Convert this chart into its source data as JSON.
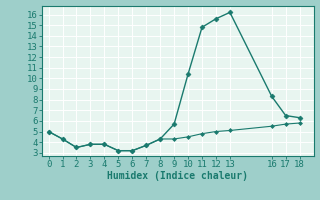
{
  "xlabel": "Humidex (Indice chaleur)",
  "background_color": "#9ecfca",
  "plot_bg_color": "#e8f5f0",
  "grid_color": "#ffffff",
  "line_color": "#1a7a6e",
  "outer_bg": "#9ecfca",
  "line1_x": [
    0,
    1,
    2,
    3,
    4,
    5,
    6,
    7,
    8,
    9,
    10,
    11,
    12,
    13,
    16,
    17,
    18
  ],
  "line1_y": [
    5.0,
    4.3,
    3.5,
    3.8,
    3.8,
    3.2,
    3.2,
    3.7,
    4.3,
    5.7,
    10.4,
    14.8,
    15.6,
    16.2,
    8.3,
    6.5,
    6.3
  ],
  "line2_x": [
    0,
    1,
    2,
    3,
    4,
    5,
    6,
    7,
    8,
    9,
    10,
    11,
    12,
    13,
    16,
    17,
    18
  ],
  "line2_y": [
    5.0,
    4.3,
    3.5,
    3.8,
    3.8,
    3.2,
    3.2,
    3.7,
    4.3,
    4.3,
    4.5,
    4.8,
    5.0,
    5.1,
    5.5,
    5.7,
    5.8
  ],
  "xlim": [
    -0.5,
    19.0
  ],
  "ylim": [
    2.7,
    16.8
  ],
  "xticks": [
    0,
    1,
    2,
    3,
    4,
    5,
    6,
    7,
    8,
    9,
    10,
    11,
    12,
    13,
    16,
    17,
    18
  ],
  "yticks": [
    3,
    4,
    5,
    6,
    7,
    8,
    9,
    10,
    11,
    12,
    13,
    14,
    15,
    16
  ],
  "fontsize": 6.5,
  "xlabel_fontsize": 7.0
}
